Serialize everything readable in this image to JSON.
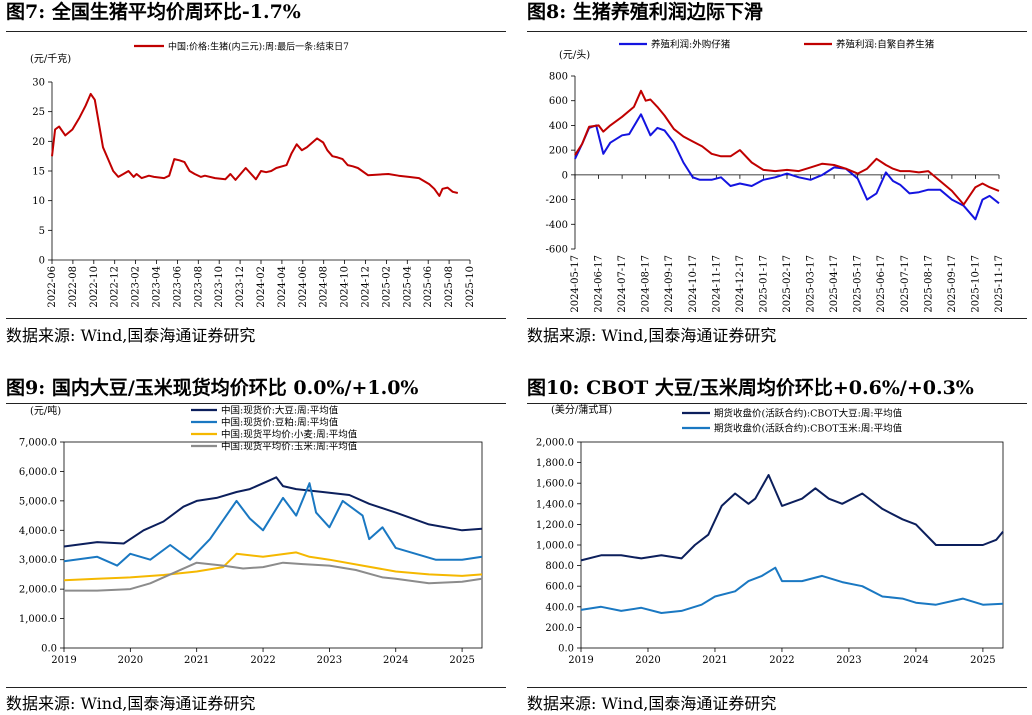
{
  "panels": [
    {
      "title": "图7:  全国生猪平均价周环比-1.7%",
      "source": "数据来源:  Wind,国泰海通证券研究",
      "chart_data": {
        "type": "line",
        "unit": "(元/千克)",
        "legend_position": "top",
        "ylim": [
          0,
          30
        ],
        "yticks": [
          "0",
          "5",
          "10",
          "15",
          "20",
          "25",
          "30"
        ],
        "xlim": [
          0,
          41
        ],
        "xtick_labels": [
          "2022-06",
          "2022-08",
          "2022-10",
          "2022-12",
          "2023-02",
          "2023-04",
          "2023-06",
          "2023-08",
          "2023-10",
          "2023-12",
          "2024-02",
          "2024-04",
          "2024-06",
          "2024-08",
          "2024-10",
          "2024-12",
          "2025-02",
          "2025-04",
          "2025-06",
          "2025-08",
          "2025-10"
        ],
        "series": [
          {
            "name": "中国:价格:生猪(内三元):周:最后一条:结束日7",
            "color": "#c00000",
            "x": [
              0,
              0.3,
              0.7,
              1.3,
              2,
              2.7,
              3.3,
              3.8,
              4.2,
              4.6,
              5,
              5.5,
              6,
              6.5,
              7,
              7.5,
              8,
              8.3,
              8.8,
              9.5,
              10,
              11,
              11.5,
              12,
              12.5,
              13,
              13.5,
              14,
              14.6,
              15,
              16,
              17,
              17.5,
              18,
              19,
              20,
              20.5,
              21,
              21.5,
              22,
              23,
              23.5,
              24,
              24.5,
              25,
              26,
              26.6,
              27,
              27.5,
              28,
              28.5,
              29,
              29.5,
              30,
              31,
              32,
              33,
              34,
              35,
              36,
              37,
              37.5,
              38,
              38.3,
              38.8,
              39.3,
              39.8
            ],
            "values": [
              17.5,
              22,
              22.5,
              21,
              22,
              24,
              26,
              28,
              27,
              23,
              19,
              17,
              15,
              14,
              14.5,
              15,
              14,
              14.5,
              13.8,
              14.2,
              14,
              13.8,
              14.2,
              17,
              16.8,
              16.5,
              15,
              14.5,
              14,
              14.2,
              13.8,
              13.6,
              14.5,
              13.5,
              15.5,
              13.6,
              15,
              14.8,
              15,
              15.5,
              16,
              18,
              19.5,
              18.5,
              19,
              20.5,
              19.8,
              18.5,
              17.5,
              17.3,
              17,
              16,
              15.8,
              15.5,
              14.3,
              14.4,
              14.5,
              14.2,
              14,
              13.8,
              12.8,
              12,
              10.8,
              12,
              12.2,
              11.5,
              11.3
            ]
          }
        ]
      }
    },
    {
      "title": "图8:  生猪养殖利润边际下滑",
      "source": "数据来源:  Wind,国泰海通证券研究",
      "chart_data": {
        "type": "line",
        "unit": "(元/头)",
        "legend_position": "top",
        "ylim": [
          -600,
          800
        ],
        "yticks": [
          "-600",
          "-400",
          "-200",
          "0",
          "200",
          "400",
          "600",
          "800"
        ],
        "xlim": [
          0,
          18
        ],
        "xtick_labels": [
          "2024-05-17",
          "2024-06-17",
          "2024-07-17",
          "2024-08-17",
          "2024-09-17",
          "2024-10-17",
          "2024-11-17",
          "2024-12-17",
          "2025-01-17",
          "2025-02-17",
          "2025-03-17",
          "2025-04-17",
          "2025-05-17",
          "2025-06-17",
          "2025-07-17",
          "2025-08-17",
          "2025-09-17",
          "2025-10-17",
          "2025-11-17"
        ],
        "series": [
          {
            "name": "养殖利润:外购仔猪",
            "color": "#1414e0",
            "x": [
              0,
              0.3,
              0.6,
              0.9,
              1.2,
              1.5,
              2,
              2.3,
              2.8,
              3.2,
              3.5,
              3.8,
              4.2,
              4.6,
              5,
              5.3,
              5.8,
              6.2,
              6.6,
              7,
              7.5,
              8,
              8.5,
              9,
              9.5,
              10,
              10.5,
              11,
              11.5,
              12,
              12.4,
              12.8,
              13.2,
              13.5,
              13.8,
              14.2,
              14.6,
              15,
              15.5,
              16,
              16.5,
              17,
              17.3,
              17.6,
              18
            ],
            "values": [
              130,
              250,
              380,
              400,
              170,
              260,
              320,
              330,
              490,
              320,
              380,
              360,
              260,
              100,
              -20,
              -40,
              -40,
              -20,
              -90,
              -70,
              -90,
              -40,
              -20,
              10,
              -20,
              -40,
              0,
              60,
              50,
              -30,
              -200,
              -150,
              20,
              -50,
              -80,
              -150,
              -140,
              -120,
              -120,
              -200,
              -250,
              -360,
              -200,
              -170,
              -230
            ]
          },
          {
            "name": "养殖利润:自繁自养生猪",
            "color": "#c00000",
            "x": [
              0,
              0.3,
              0.6,
              1,
              1.2,
              1.5,
              2,
              2.5,
              2.8,
              3,
              3.2,
              3.5,
              3.8,
              4.2,
              4.6,
              5,
              5.4,
              5.8,
              6.2,
              6.6,
              7,
              7.5,
              8,
              8.5,
              9,
              9.5,
              10,
              10.5,
              11,
              11.5,
              12,
              12.4,
              12.8,
              13.2,
              13.5,
              13.8,
              14.2,
              14.6,
              15,
              15.5,
              16,
              16.5,
              17,
              17.3,
              17.6,
              18
            ],
            "values": [
              160,
              250,
              390,
              400,
              350,
              400,
              470,
              550,
              680,
              600,
              610,
              550,
              480,
              370,
              310,
              270,
              230,
              170,
              150,
              150,
              200,
              100,
              40,
              30,
              40,
              30,
              60,
              90,
              80,
              50,
              10,
              50,
              130,
              80,
              50,
              30,
              30,
              20,
              30,
              -50,
              -130,
              -240,
              -100,
              -70,
              -100,
              -130
            ]
          }
        ]
      }
    },
    {
      "title": "图9:  国内大豆/玉米现货均价环比 0.0%/+1.0%",
      "source": "数据来源:  Wind,国泰海通证券研究",
      "chart_data": {
        "type": "line",
        "unit": "(元/吨)",
        "legend_position": "top",
        "ylim": [
          0,
          7000
        ],
        "yticks": [
          "0.0",
          "1,000.0",
          "2,000.0",
          "3,000.0",
          "4,000.0",
          "5,000.0",
          "6,000.0",
          "7,000.0"
        ],
        "xlim": [
          2019,
          2025.3
        ],
        "xtick_labels": [
          "2019",
          "2020",
          "2021",
          "2022",
          "2023",
          "2024",
          "2025"
        ],
        "series": [
          {
            "name": "中国:现货价:大豆:周:平均值",
            "color": "#0c1f5c",
            "x": [
              2019,
              2019.5,
              2019.9,
              2020.2,
              2020.5,
              2020.8,
              2021,
              2021.3,
              2021.6,
              2021.8,
              2022.1,
              2022.2,
              2022.3,
              2022.5,
              2022.9,
              2023.3,
              2023.6,
              2024,
              2024.5,
              2025,
              2025.3
            ],
            "values": [
              3450,
              3600,
              3550,
              4000,
              4300,
              4800,
              5000,
              5100,
              5300,
              5400,
              5700,
              5800,
              5500,
              5400,
              5300,
              5200,
              4900,
              4600,
              4200,
              4000,
              4050
            ]
          },
          {
            "name": "中国:现货价:豆粕:周:平均值",
            "color": "#1a78c2",
            "x": [
              2019,
              2019.5,
              2019.8,
              2020,
              2020.3,
              2020.6,
              2020.9,
              2021.2,
              2021.6,
              2021.8,
              2022,
              2022.3,
              2022.5,
              2022.7,
              2022.8,
              2023,
              2023.2,
              2023.5,
              2023.6,
              2023.8,
              2024,
              2024.3,
              2024.6,
              2025,
              2025.3
            ],
            "values": [
              2950,
              3100,
              2800,
              3200,
              3000,
              3500,
              3000,
              3700,
              5000,
              4400,
              4000,
              5100,
              4500,
              5600,
              4600,
              4100,
              5000,
              4500,
              3700,
              4100,
              3400,
              3200,
              3000,
              3000,
              3100
            ]
          },
          {
            "name": "中国:现货平均价:小麦:周:平均值",
            "color": "#f5b800",
            "x": [
              2019,
              2019.5,
              2020,
              2020.5,
              2021,
              2021.4,
              2021.6,
              2022,
              2022.5,
              2022.7,
              2023,
              2023.5,
              2024,
              2024.5,
              2025,
              2025.3
            ],
            "values": [
              2300,
              2350,
              2400,
              2480,
              2600,
              2750,
              3200,
              3100,
              3250,
              3100,
              3000,
              2800,
              2600,
              2500,
              2450,
              2500
            ]
          },
          {
            "name": "中国:现货平均价:玉米:周:平均值",
            "color": "#8c8c8c",
            "x": [
              2019,
              2019.5,
              2020,
              2020.3,
              2020.6,
              2021,
              2021.4,
              2021.7,
              2022,
              2022.3,
              2022.6,
              2023,
              2023.4,
              2023.8,
              2024,
              2024.5,
              2025,
              2025.3
            ],
            "values": [
              1950,
              1950,
              2000,
              2200,
              2500,
              2900,
              2800,
              2700,
              2750,
              2900,
              2850,
              2800,
              2650,
              2400,
              2350,
              2200,
              2250,
              2350
            ]
          }
        ]
      }
    },
    {
      "title": "图10:  CBOT 大豆/玉米周均价环比+0.6%/+0.3%",
      "source": "数据来源:  Wind,国泰海通证券研究",
      "chart_data": {
        "type": "line",
        "unit": "(美分/蒲式耳)",
        "legend_position": "top",
        "ylim": [
          0,
          2000
        ],
        "yticks": [
          "0.0",
          "200.0",
          "400.0",
          "600.0",
          "800.0",
          "1,000.0",
          "1,200.0",
          "1,400.0",
          "1,600.0",
          "1,800.0",
          "2,000.0"
        ],
        "xlim": [
          2019,
          2025.3
        ],
        "xtick_labels": [
          "2019",
          "2020",
          "2021",
          "2022",
          "2023",
          "2024",
          "2025"
        ],
        "series": [
          {
            "name": "期货收盘价(活跃合约):CBOT大豆:周:平均值",
            "color": "#0c1f5c",
            "x": [
              2019,
              2019.3,
              2019.6,
              2019.9,
              2020.2,
              2020.5,
              2020.7,
              2020.9,
              2021.1,
              2021.3,
              2021.5,
              2021.6,
              2021.8,
              2022,
              2022.3,
              2022.5,
              2022.7,
              2022.9,
              2023.2,
              2023.5,
              2023.8,
              2024,
              2024.3,
              2024.6,
              2025,
              2025.2,
              2025.3
            ],
            "values": [
              850,
              900,
              900,
              870,
              900,
              870,
              1000,
              1100,
              1380,
              1500,
              1400,
              1450,
              1680,
              1380,
              1450,
              1550,
              1450,
              1400,
              1500,
              1350,
              1250,
              1200,
              1000,
              1000,
              1000,
              1050,
              1130
            ]
          },
          {
            "name": "期货收盘价(活跃合约):CBOT玉米:周:平均值",
            "color": "#1a78c2",
            "x": [
              2019,
              2019.3,
              2019.6,
              2019.9,
              2020.2,
              2020.5,
              2020.8,
              2021,
              2021.3,
              2021.5,
              2021.7,
              2021.9,
              2022,
              2022.3,
              2022.6,
              2022.9,
              2023.2,
              2023.5,
              2023.8,
              2024,
              2024.3,
              2024.7,
              2025,
              2025.3
            ],
            "values": [
              370,
              400,
              360,
              390,
              340,
              360,
              420,
              500,
              550,
              650,
              700,
              780,
              650,
              650,
              700,
              640,
              600,
              500,
              480,
              440,
              420,
              480,
              420,
              430
            ]
          }
        ]
      }
    }
  ]
}
